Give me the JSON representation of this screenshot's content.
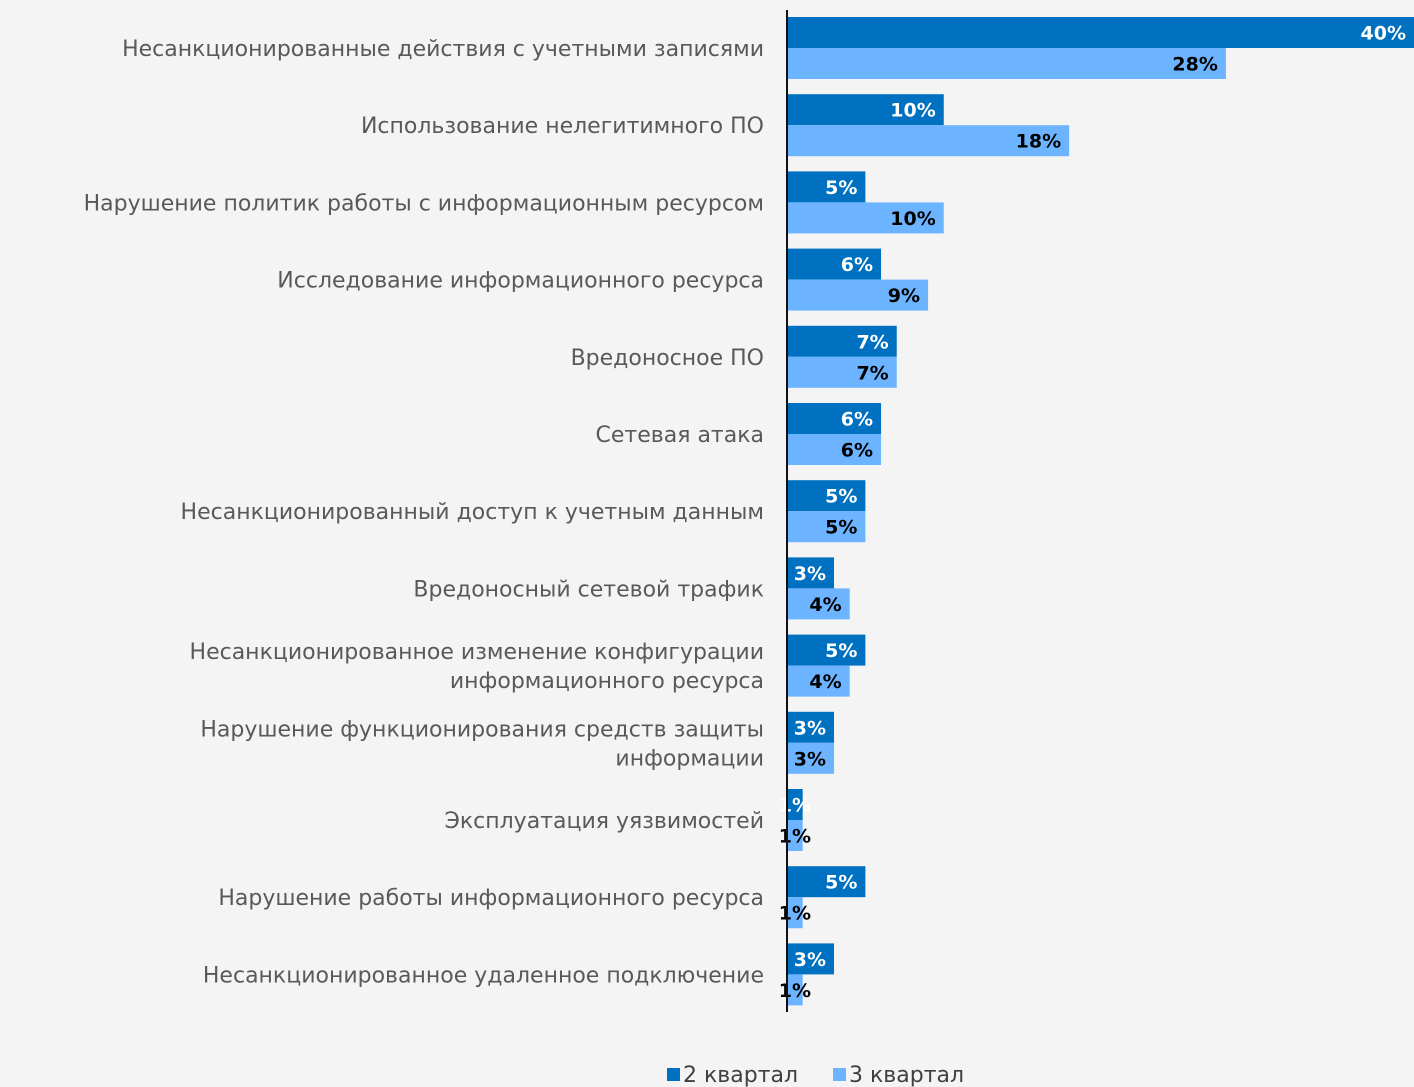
{
  "chart_data": {
    "type": "bar",
    "orientation": "horizontal",
    "value_suffix": "%",
    "categories": [
      [
        "Несанкционированные действия с учетными записями"
      ],
      [
        "Использование нелегитимного ПО"
      ],
      [
        "Нарушение политик работы с информационным ресурсом"
      ],
      [
        "Исследование информационного ресурса"
      ],
      [
        "Вредоносное ПО"
      ],
      [
        "Сетевая атака"
      ],
      [
        "Несанкционированный доступ к учетным данным"
      ],
      [
        "Вредоносный сетевой трафик"
      ],
      [
        "Несанкционированное изменение конфигурации",
        "информационного ресурса"
      ],
      [
        "Нарушение функционирования средств защиты",
        "информации"
      ],
      [
        "Эксплуатация уязвимостей"
      ],
      [
        "Нарушение работы информационного ресурса"
      ],
      [
        "Несанкционированное удаленное подключение"
      ]
    ],
    "series": [
      {
        "name": "2 квартал",
        "color": "#0070c0",
        "label_color": "#ffffff",
        "values": [
          40,
          10,
          5,
          6,
          7,
          6,
          5,
          3,
          5,
          3,
          1,
          5,
          3
        ]
      },
      {
        "name": "3 квартал",
        "color": "#6cb4ff",
        "label_color": "#000000",
        "values": [
          28,
          18,
          10,
          9,
          7,
          6,
          5,
          4,
          4,
          3,
          1,
          1,
          1
        ]
      }
    ],
    "xlim": [
      0,
      40
    ],
    "legend_position": "bottom",
    "grid": false
  }
}
